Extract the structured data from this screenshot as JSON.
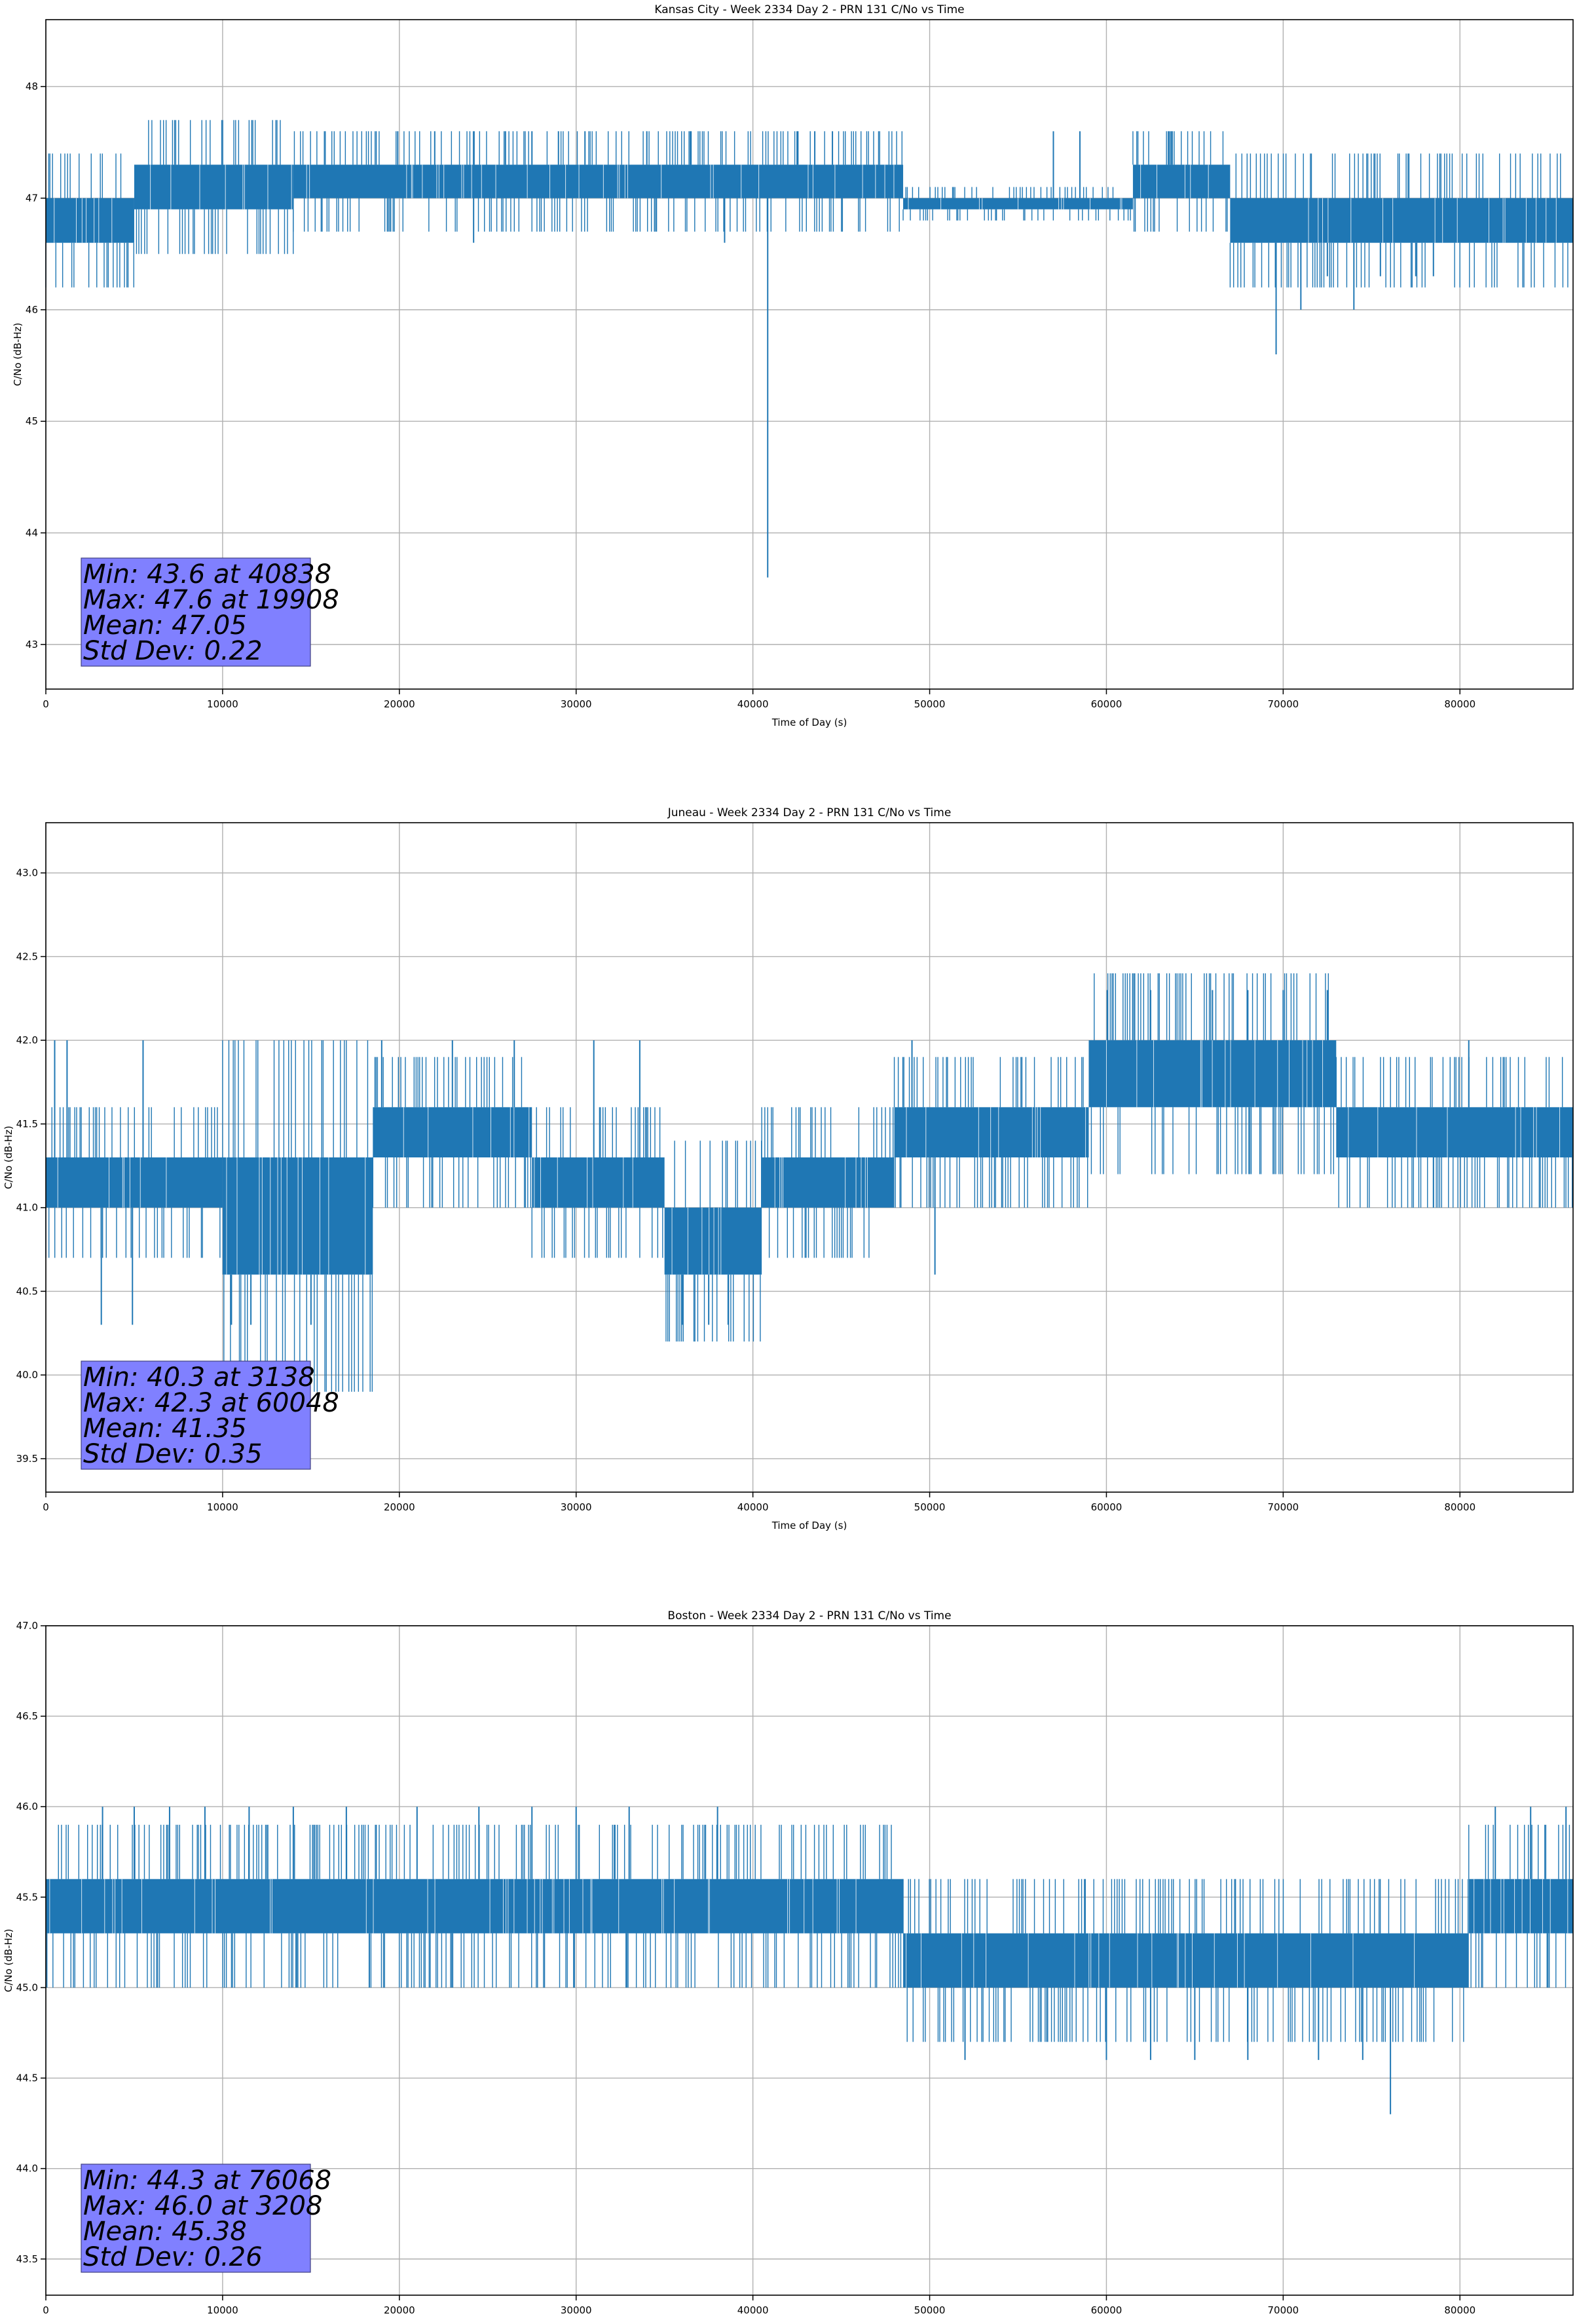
{
  "chart_data": [
    {
      "type": "line",
      "title": "Kansas City - Week 2334 Day 2 - PRN 131 C/No vs Time",
      "xlabel": "Time of Day (s)",
      "ylabel": "C/No (dB-Hz)",
      "xlim": [
        0,
        86400
      ],
      "ylim": [
        42.6,
        48.6
      ],
      "xticks": [
        0,
        10000,
        20000,
        30000,
        40000,
        50000,
        60000,
        70000,
        80000
      ],
      "yticks": [
        43,
        44,
        45,
        46,
        47,
        48
      ],
      "ytick_labels": [
        "43",
        "44",
        "45",
        "46",
        "47",
        "48"
      ],
      "grid": true,
      "series_color": "#1f77b4",
      "stats_box_color": "#8080ff",
      "stats": [
        "Min: 43.6 at 40838",
        "Max: 47.6 at 19908",
        "Mean: 47.05",
        "Std Dev: 0.22"
      ],
      "series": [
        {
          "x": [
            0,
            5000,
            5000,
            14000,
            14000,
            48500,
            48500,
            61500,
            61500,
            67000,
            67000,
            86400
          ],
          "band_low": [
            46.6,
            46.6,
            46.9,
            46.9,
            47.0,
            47.0,
            46.9,
            46.9,
            47.0,
            47.0,
            46.6,
            46.6
          ],
          "band_high": [
            47.0,
            47.0,
            47.3,
            47.3,
            47.3,
            47.3,
            47.0,
            47.0,
            47.3,
            47.3,
            47.0,
            47.0
          ],
          "spikes": [
            {
              "x": 40838,
              "y": 43.6
            },
            {
              "x": 19908,
              "y": 47.6
            },
            {
              "x": 22000,
              "y": 47.6
            },
            {
              "x": 26000,
              "y": 47.6
            },
            {
              "x": 27500,
              "y": 47.6
            },
            {
              "x": 29000,
              "y": 47.6
            },
            {
              "x": 30500,
              "y": 47.6
            },
            {
              "x": 34000,
              "y": 47.6
            },
            {
              "x": 36500,
              "y": 47.6
            },
            {
              "x": 42500,
              "y": 47.6
            },
            {
              "x": 43500,
              "y": 47.6
            },
            {
              "x": 44500,
              "y": 47.6
            },
            {
              "x": 57000,
              "y": 47.6
            },
            {
              "x": 58500,
              "y": 47.6
            },
            {
              "x": 24200,
              "y": 46.6
            },
            {
              "x": 38400,
              "y": 46.6
            },
            {
              "x": 69600,
              "y": 45.6
            },
            {
              "x": 71000,
              "y": 46.0
            },
            {
              "x": 74000,
              "y": 46.0
            },
            {
              "x": 72500,
              "y": 46.3
            },
            {
              "x": 75500,
              "y": 46.3
            },
            {
              "x": 77500,
              "y": 46.3
            },
            {
              "x": 78500,
              "y": 46.3
            }
          ]
        }
      ]
    },
    {
      "type": "line",
      "title": "Juneau - Week 2334 Day 2 - PRN 131 C/No vs Time",
      "xlabel": "Time of Day (s)",
      "ylabel": "C/No (dB-Hz)",
      "xlim": [
        0,
        86400
      ],
      "ylim": [
        39.3,
        43.3
      ],
      "xticks": [
        0,
        10000,
        20000,
        30000,
        40000,
        50000,
        60000,
        70000,
        80000
      ],
      "yticks": [
        39.5,
        40.0,
        40.5,
        41.0,
        41.5,
        42.0,
        42.5,
        43.0
      ],
      "ytick_labels": [
        "39.5",
        "40.0",
        "40.5",
        "41.0",
        "41.5",
        "42.0",
        "42.5",
        "43.0"
      ],
      "grid": true,
      "series_color": "#1f77b4",
      "stats_box_color": "#8080ff",
      "stats": [
        "Min: 40.3 at 3138",
        "Max: 42.3 at 60048",
        "Mean: 41.35",
        "Std Dev: 0.35"
      ],
      "series": [
        {
          "x": [
            0,
            10000,
            10000,
            18500,
            18500,
            27500,
            27500,
            35000,
            35000,
            40500,
            40500,
            48000,
            48000,
            59000,
            59000,
            73000,
            73000,
            86400
          ],
          "band_low": [
            41.0,
            41.0,
            40.6,
            40.6,
            41.3,
            41.3,
            41.0,
            41.0,
            40.6,
            40.6,
            41.0,
            41.0,
            41.3,
            41.3,
            41.6,
            41.6,
            41.3,
            41.3
          ],
          "band_high": [
            41.3,
            41.3,
            41.3,
            41.3,
            41.6,
            41.6,
            41.3,
            41.3,
            41.0,
            41.0,
            41.3,
            41.3,
            41.6,
            41.6,
            42.0,
            42.0,
            41.6,
            41.6
          ],
          "spikes": [
            {
              "x": 3138,
              "y": 40.3
            },
            {
              "x": 500,
              "y": 42.0
            },
            {
              "x": 1200,
              "y": 42.0
            },
            {
              "x": 5500,
              "y": 42.0
            },
            {
              "x": 4900,
              "y": 40.3
            },
            {
              "x": 10500,
              "y": 40.3
            },
            {
              "x": 11600,
              "y": 40.3
            },
            {
              "x": 15000,
              "y": 40.3
            },
            {
              "x": 19000,
              "y": 42.0
            },
            {
              "x": 23000,
              "y": 42.0
            },
            {
              "x": 26500,
              "y": 42.0
            },
            {
              "x": 31000,
              "y": 42.0
            },
            {
              "x": 33600,
              "y": 42.0
            },
            {
              "x": 36000,
              "y": 40.3
            },
            {
              "x": 37500,
              "y": 40.3
            },
            {
              "x": 38600,
              "y": 40.3
            },
            {
              "x": 50300,
              "y": 40.6
            },
            {
              "x": 49000,
              "y": 42.0
            },
            {
              "x": 60048,
              "y": 42.3
            },
            {
              "x": 62500,
              "y": 42.3
            },
            {
              "x": 66000,
              "y": 42.3
            },
            {
              "x": 68000,
              "y": 42.3
            },
            {
              "x": 70000,
              "y": 42.3
            },
            {
              "x": 72500,
              "y": 42.3
            },
            {
              "x": 78500,
              "y": 41.0
            },
            {
              "x": 80500,
              "y": 42.0
            }
          ]
        }
      ]
    },
    {
      "type": "line",
      "title": "Boston - Week 2334 Day 2 - PRN 131 C/No vs Time",
      "xlabel": "Time of Day (s)",
      "ylabel": "C/No (dB-Hz)",
      "xlim": [
        0,
        86400
      ],
      "ylim": [
        43.3,
        47.0
      ],
      "xticks": [
        0,
        10000,
        20000,
        30000,
        40000,
        50000,
        60000,
        70000,
        80000
      ],
      "yticks": [
        43.5,
        44.0,
        44.5,
        45.0,
        45.5,
        46.0,
        46.5,
        47.0
      ],
      "ytick_labels": [
        "43.5",
        "44.0",
        "44.5",
        "45.0",
        "45.5",
        "46.0",
        "46.5",
        "47.0"
      ],
      "grid": true,
      "series_color": "#1f77b4",
      "stats_box_color": "#8080ff",
      "stats": [
        "Min: 44.3 at 76068",
        "Max: 46.0 at 3208",
        "Mean: 45.38",
        "Std Dev: 0.26"
      ],
      "series": [
        {
          "x": [
            0,
            48500,
            48500,
            80500,
            80500,
            86400
          ],
          "band_low": [
            45.3,
            45.3,
            45.0,
            45.0,
            45.3,
            45.3
          ],
          "band_high": [
            45.6,
            45.6,
            45.3,
            45.3,
            45.6,
            45.6
          ],
          "spikes": [
            {
              "x": 3208,
              "y": 46.0
            },
            {
              "x": 5000,
              "y": 46.0
            },
            {
              "x": 7000,
              "y": 46.0
            },
            {
              "x": 9000,
              "y": 46.0
            },
            {
              "x": 11500,
              "y": 46.0
            },
            {
              "x": 14000,
              "y": 46.0
            },
            {
              "x": 17000,
              "y": 46.0
            },
            {
              "x": 18300,
              "y": 45.0
            },
            {
              "x": 21000,
              "y": 46.0
            },
            {
              "x": 24500,
              "y": 46.0
            },
            {
              "x": 27500,
              "y": 46.0
            },
            {
              "x": 30000,
              "y": 46.0
            },
            {
              "x": 33000,
              "y": 46.0
            },
            {
              "x": 38000,
              "y": 46.0
            },
            {
              "x": 52000,
              "y": 44.6
            },
            {
              "x": 60000,
              "y": 44.6
            },
            {
              "x": 62500,
              "y": 44.6
            },
            {
              "x": 65000,
              "y": 44.6
            },
            {
              "x": 68000,
              "y": 44.6
            },
            {
              "x": 72000,
              "y": 44.6
            },
            {
              "x": 74500,
              "y": 44.6
            },
            {
              "x": 76068,
              "y": 44.3
            },
            {
              "x": 82000,
              "y": 46.0
            },
            {
              "x": 84000,
              "y": 46.0
            },
            {
              "x": 86000,
              "y": 46.0
            }
          ]
        }
      ]
    }
  ]
}
